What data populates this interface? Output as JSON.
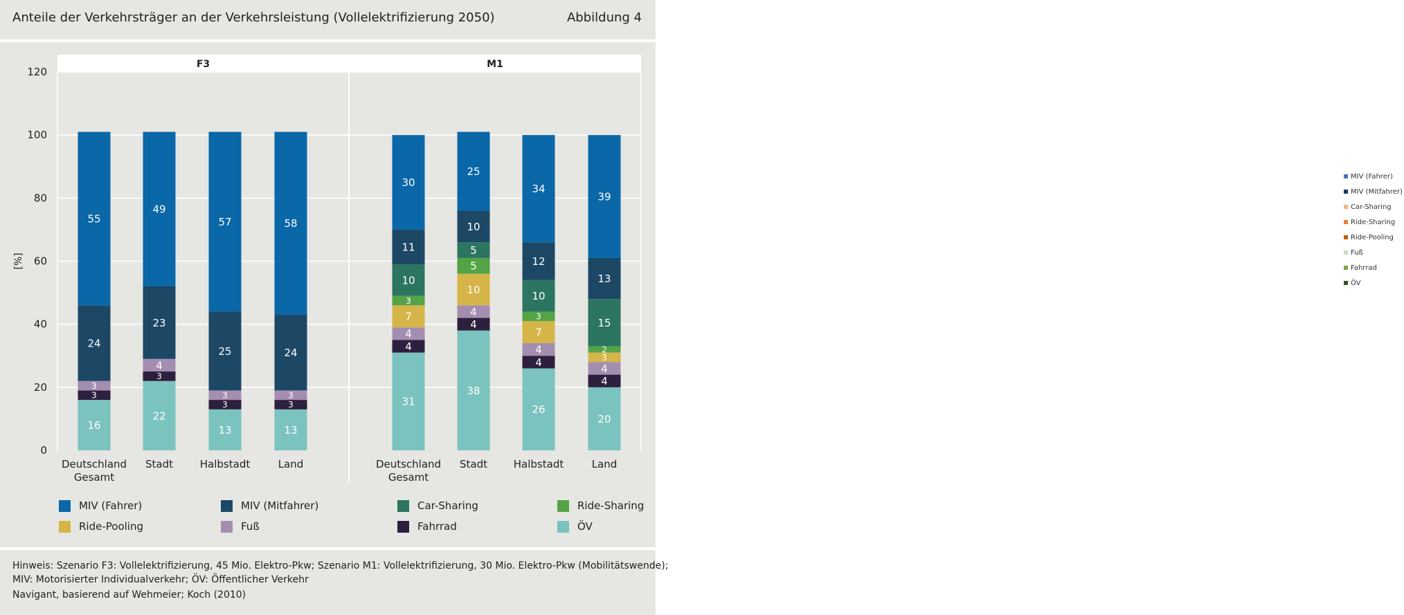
{
  "header": {
    "title": "Anteile der Verkehrsträger an der Verkehrsleistung (Vollelektrifizierung 2050)",
    "figure_label": "Abbildung 4"
  },
  "footer": {
    "note_line1": "Hinweis: Szenario F3: Vollelektrifizierung, 45 Mio. Elektro-Pkw; Szenario M1: Vollelektrifizierung, 30 Mio. Elektro-Pkw (Mobilitätswende);",
    "note_line2": "MIV: Motorisierter Individualverkehr; ÖV: Öffentlicher Verkehr",
    "source": "Navigant, basierend auf Wehmeier; Koch (2010)"
  },
  "colors": {
    "MIV (Fahrer)": "#0a67a8",
    "MIV (Mitfahrer)": "#1c4866",
    "Car-Sharing": "#2c7560",
    "Ride-Sharing": "#54a447",
    "Ride-Pooling": "#d5b548",
    "Fuß": "#a48eb0",
    "Fahrrad": "#2d1f3e",
    "ÖV": "#7bc3bf"
  },
  "legend_bottom": [
    "MIV (Fahrer)",
    "MIV (Mitfahrer)",
    "Car-Sharing",
    "Ride-Sharing",
    "Ride-Pooling",
    "Fuß",
    "Fahrrad",
    "ÖV"
  ],
  "legend_right": [
    {
      "label": "MIV (Fahrer)",
      "color": "#4472c4"
    },
    {
      "label": "MIV (Mitfahrer)",
      "color": "#1f3864"
    },
    {
      "label": "Car-Sharing",
      "color": "#f4b183"
    },
    {
      "label": "Ride-Sharing",
      "color": "#ed7d31"
    },
    {
      "label": "Ride-Pooling",
      "color": "#c55a11"
    },
    {
      "label": "Fuß",
      "color": "#c5e0b4"
    },
    {
      "label": "Fahrrad",
      "color": "#70ad47"
    },
    {
      "label": "ÖV",
      "color": "#375623"
    }
  ],
  "chart_data": {
    "type": "bar",
    "stacked": true,
    "ylabel": "[%]",
    "ylim": [
      0,
      120
    ],
    "yticks": [
      0,
      20,
      40,
      60,
      80,
      100,
      120
    ],
    "grid": true,
    "stack_order": [
      "ÖV",
      "Fahrrad",
      "Fuß",
      "Ride-Pooling",
      "Ride-Sharing",
      "Car-Sharing",
      "MIV (Mitfahrer)",
      "MIV (Fahrer)"
    ],
    "panels": [
      {
        "name": "F3",
        "categories": [
          "Deutschland Gesamt",
          "Stadt",
          "Halbstadt",
          "Land"
        ],
        "series": [
          {
            "name": "ÖV",
            "values": [
              16,
              22,
              13,
              13
            ]
          },
          {
            "name": "Fahrrad",
            "values": [
              3,
              3,
              3,
              3
            ]
          },
          {
            "name": "Fuß",
            "values": [
              3,
              4,
              3,
              3
            ]
          },
          {
            "name": "Ride-Pooling",
            "values": [
              0,
              0,
              0,
              0
            ]
          },
          {
            "name": "Ride-Sharing",
            "values": [
              0,
              0,
              0,
              0
            ]
          },
          {
            "name": "Car-Sharing",
            "values": [
              0,
              0,
              0,
              0
            ]
          },
          {
            "name": "MIV (Mitfahrer)",
            "values": [
              24,
              23,
              25,
              24
            ]
          },
          {
            "name": "MIV (Fahrer)",
            "values": [
              55,
              49,
              57,
              58
            ]
          }
        ]
      },
      {
        "name": "M1",
        "categories": [
          "Deutschland Gesamt",
          "Stadt",
          "Halbstadt",
          "Land"
        ],
        "series": [
          {
            "name": "ÖV",
            "values": [
              31,
              38,
              26,
              20
            ]
          },
          {
            "name": "Fahrrad",
            "values": [
              4,
              4,
              4,
              4
            ]
          },
          {
            "name": "Fuß",
            "values": [
              4,
              4,
              4,
              4
            ]
          },
          {
            "name": "Ride-Pooling",
            "values": [
              7,
              10,
              7,
              3
            ]
          },
          {
            "name": "Ride-Sharing",
            "values": [
              3,
              5,
              3,
              2
            ]
          },
          {
            "name": "Car-Sharing",
            "values": [
              10,
              5,
              10,
              15
            ]
          },
          {
            "name": "MIV (Mitfahrer)",
            "values": [
              11,
              10,
              12,
              13
            ]
          },
          {
            "name": "MIV (Fahrer)",
            "values": [
              30,
              25,
              34,
              39
            ]
          }
        ]
      }
    ]
  }
}
